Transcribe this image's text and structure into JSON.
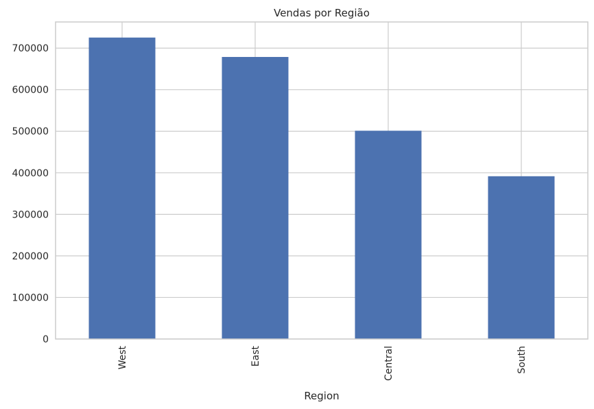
{
  "chart_data": {
    "type": "bar",
    "title": "Vendas por Região",
    "xlabel": "Region",
    "ylabel": "",
    "categories": [
      "West",
      "East",
      "Central",
      "South"
    ],
    "values": [
      725458,
      678781,
      501240,
      391722
    ],
    "ylim": [
      0,
      763000
    ],
    "yticks": [
      0,
      100000,
      200000,
      300000,
      400000,
      500000,
      600000,
      700000
    ],
    "ytick_labels": [
      "0",
      "100000",
      "200000",
      "300000",
      "400000",
      "500000",
      "600000",
      "700000"
    ],
    "grid": true,
    "legend": "none",
    "colors": {
      "bar": "#4c72b0",
      "grid": "#cccccc",
      "spine": "#cccccc",
      "background": "#ffffff",
      "text": "#262626"
    }
  }
}
